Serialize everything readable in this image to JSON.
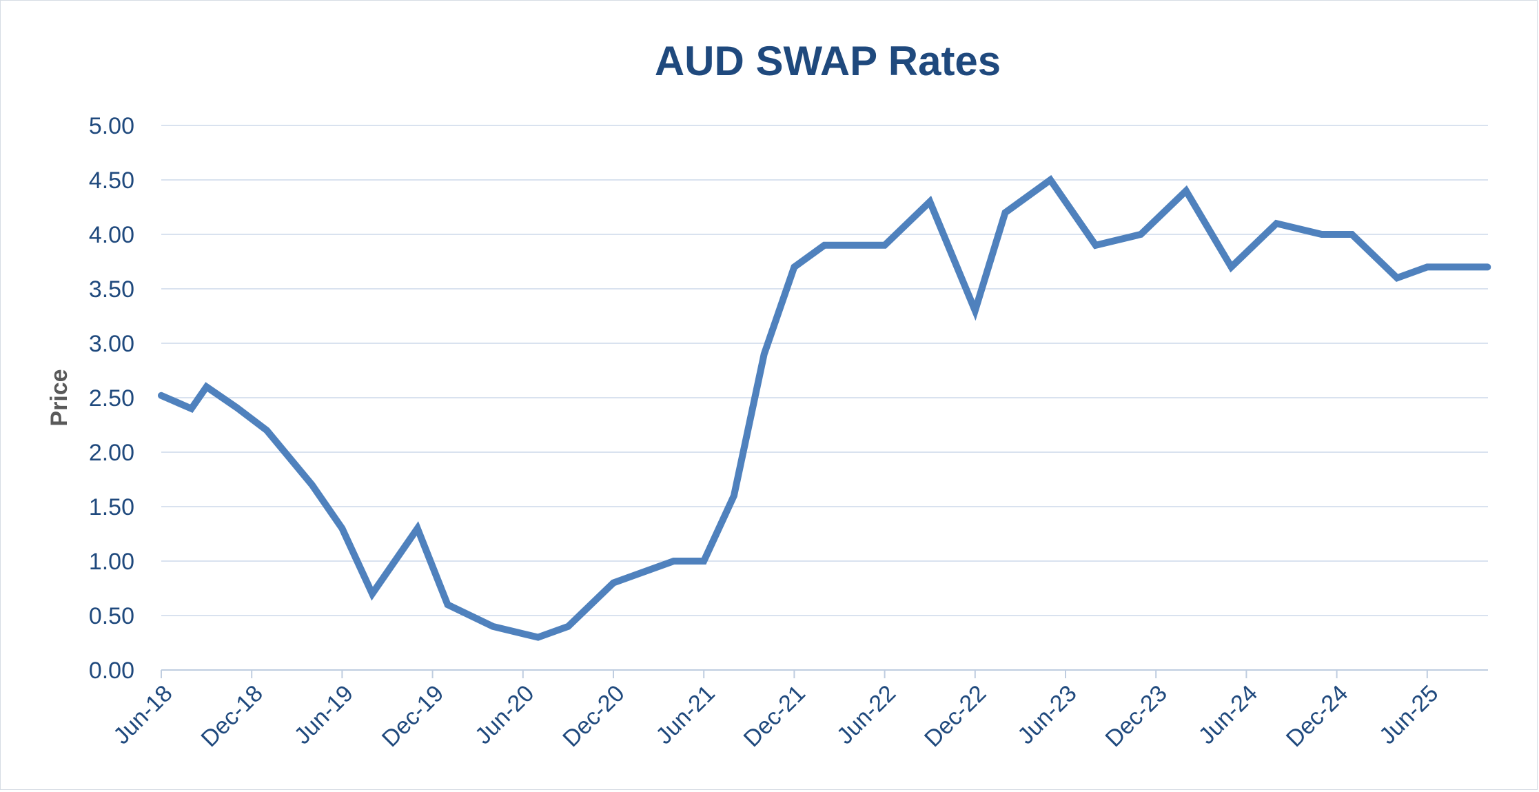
{
  "chart_data": {
    "type": "line",
    "title": "AUD SWAP Rates",
    "xlabel": "",
    "ylabel": "Price",
    "ylim": [
      0,
      5
    ],
    "yticks": [
      "0.00",
      "0.50",
      "1.00",
      "1.50",
      "2.00",
      "2.50",
      "3.00",
      "3.50",
      "4.00",
      "4.50",
      "5.00"
    ],
    "xticks": [
      "Jun-18",
      "Dec-18",
      "Jun-19",
      "Dec-19",
      "Jun-20",
      "Dec-20",
      "Jun-21",
      "Dec-21",
      "Jun-22",
      "Dec-22",
      "Jun-23",
      "Dec-23",
      "Jun-24",
      "Dec-24",
      "Jun-25"
    ],
    "grid": true,
    "legend": "none",
    "colors": {
      "line": "#4f81bd",
      "text": "#1f497d",
      "grid": "#d9e2ef"
    },
    "series": [
      {
        "x": [
          "Jun-18",
          "Aug-18",
          "Sep-18",
          "Nov-18",
          "Jan-19",
          "Apr-19",
          "Jun-19",
          "Aug-19",
          "Nov-19",
          "Jan-20",
          "Apr-20",
          "Jul-20",
          "Sep-20",
          "Dec-20",
          "Feb-21",
          "Apr-21",
          "Jun-21",
          "Aug-21",
          "Oct-21",
          "Dec-21",
          "Feb-22",
          "Jun-22",
          "Sep-22",
          "Dec-22",
          "Feb-23",
          "May-23",
          "Aug-23",
          "Nov-23",
          "Feb-24",
          "May-24",
          "Aug-24",
          "Nov-24",
          "Jan-25",
          "Apr-25",
          "Jun-25",
          "Aug-25",
          "Oct-25"
        ],
        "values": [
          2.52,
          2.4,
          2.6,
          2.41,
          2.2,
          1.7,
          1.3,
          0.7,
          1.3,
          0.6,
          0.4,
          0.3,
          0.4,
          0.8,
          0.9,
          1.0,
          1.0,
          1.6,
          2.9,
          3.7,
          3.9,
          3.9,
          4.3,
          3.3,
          4.2,
          4.5,
          3.9,
          4.0,
          4.4,
          3.7,
          4.1,
          4.0,
          4.0,
          3.6,
          3.7,
          3.7,
          3.7
        ]
      }
    ]
  }
}
